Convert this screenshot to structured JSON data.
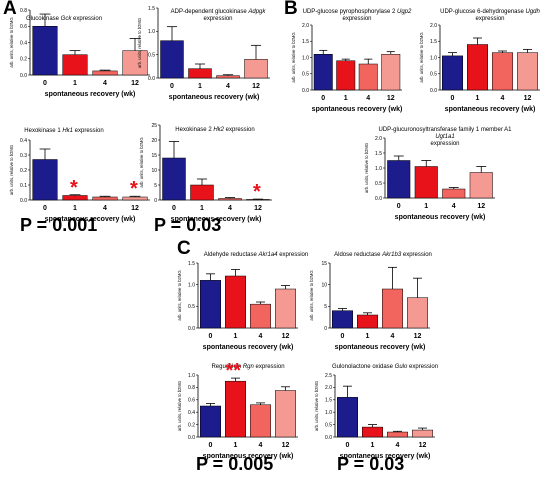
{
  "panels": {
    "A": "A",
    "B": "B",
    "C": "C"
  },
  "p_values": {
    "hk1": "P = 0.001",
    "hk2": "P = 0.03",
    "rgn": "P = 0.005",
    "gulo": "P = 0.03"
  },
  "markers": {
    "single": "*",
    "double": "**"
  },
  "colors": {
    "wk0": "#1c1c8c",
    "wk1": "#e8121b",
    "wk4": "#f2655f",
    "wk12": "#f59a92",
    "marker": "#e8121b"
  },
  "chart_data": [
    {
      "id": "gck",
      "type": "bar",
      "title": "Glucokinase",
      "gene": "Gck",
      "title_suffix": "expression",
      "ylabel": "arb. units, relative to b2MG",
      "xlabel": "spontaneous recovery (wk)",
      "categories": [
        "0",
        "1",
        "4",
        "12"
      ],
      "values": [
        0.6,
        0.25,
        0.05,
        0.3
      ],
      "errors": [
        0.15,
        0.05,
        0.01,
        0.15
      ],
      "ylim": [
        0,
        0.8
      ],
      "yticks": [
        "0.0",
        "0.2",
        "0.4",
        "0.6",
        "0.8"
      ]
    },
    {
      "id": "adpgk",
      "type": "bar",
      "title": "ADP-dependent glucokinase",
      "gene": "Adpgk",
      "title_suffix": "expression",
      "ylabel": "arb. units, relative to b2MG",
      "xlabel": "spontaneous recovery (wk)",
      "categories": [
        "0",
        "1",
        "4",
        "12"
      ],
      "values": [
        0.8,
        0.2,
        0.05,
        0.4
      ],
      "errors": [
        0.3,
        0.1,
        0.02,
        0.3
      ],
      "ylim": [
        0,
        1.5
      ],
      "yticks": [
        "0.0",
        "0.5",
        "1.0",
        "1.5"
      ]
    },
    {
      "id": "hk1",
      "type": "bar",
      "title": "Hexokinase 1",
      "gene": "Hk1",
      "title_suffix": "expression",
      "ylabel": "arb. units, relative to b2MG",
      "xlabel": "spontaneous recovery (wk)",
      "categories": [
        "0",
        "1",
        "4",
        "12"
      ],
      "values": [
        0.27,
        0.03,
        0.02,
        0.02
      ],
      "errors": [
        0.07,
        0.005,
        0.005,
        0.005
      ],
      "ylim": [
        0,
        0.4
      ],
      "yticks": [
        "0.0",
        "0.1",
        "0.2",
        "0.3",
        "0.4"
      ],
      "markers": [
        "",
        "*",
        "",
        "*"
      ]
    },
    {
      "id": "hk2",
      "type": "bar",
      "title": "Hexokinase 2",
      "gene": "Hk2",
      "title_suffix": "expression",
      "ylabel": "arb. units, relative to b2MG",
      "xlabel": "spontaneous recovery (wk)",
      "categories": [
        "0",
        "1",
        "4",
        "12"
      ],
      "values": [
        14,
        5,
        0.5,
        0.2
      ],
      "errors": [
        5.5,
        2,
        0.3,
        0.1
      ],
      "ylim": [
        0,
        25
      ],
      "yticks": [
        "0",
        "5",
        "10",
        "15",
        "20",
        "25"
      ],
      "markers": [
        "",
        "",
        "",
        "*"
      ]
    },
    {
      "id": "ugp2",
      "type": "bar",
      "title": "UDP-glucose pyrophosphorylase 2",
      "gene": "Ugp2",
      "title_suffix": "expression",
      "ylabel": "arb. units, relative to b2MG",
      "xlabel": "spontaneous recovery (wk)",
      "categories": [
        "0",
        "1",
        "4",
        "12"
      ],
      "values": [
        1.1,
        0.9,
        0.8,
        1.1
      ],
      "errors": [
        0.12,
        0.05,
        0.15,
        0.08
      ],
      "ylim": [
        0,
        2.0
      ],
      "yticks": [
        "0.0",
        "0.5",
        "1.0",
        "1.5",
        "2.0"
      ]
    },
    {
      "id": "ugdh",
      "type": "bar",
      "title": "UDP-glucose 6-dehydrogenase",
      "gene": "Ugdh",
      "title_suffix": "expression",
      "ylabel": "arb. units, relative to b2MG",
      "xlabel": "spontaneous recovery (wk)",
      "categories": [
        "0",
        "1",
        "4",
        "12"
      ],
      "values": [
        1.05,
        1.4,
        1.15,
        1.15
      ],
      "errors": [
        0.1,
        0.2,
        0.05,
        0.1
      ],
      "ylim": [
        0,
        2.0
      ],
      "yticks": [
        "0.0",
        "0.5",
        "1.0",
        "1.5",
        "2.0"
      ]
    },
    {
      "id": "ugt1a1",
      "type": "bar",
      "title": "UDP-glucuronosyltransferase family 1 member A1",
      "gene": "Ugt1a1",
      "title_suffix": "expression",
      "ylabel": "arb. units, relative to b2MG",
      "xlabel": "spontaneous recovery (wk)",
      "categories": [
        "0",
        "1",
        "4",
        "12"
      ],
      "values": [
        1.25,
        1.05,
        0.3,
        0.85
      ],
      "errors": [
        0.15,
        0.2,
        0.05,
        0.2
      ],
      "ylim": [
        0,
        2.0
      ],
      "yticks": [
        "0.0",
        "0.5",
        "1.0",
        "1.5",
        "2.0"
      ]
    },
    {
      "id": "akr1a4",
      "type": "bar",
      "title": "Aldehyde reductase",
      "gene": "Akr1a4",
      "title_suffix": "expression",
      "ylabel": "arb. units, relative to b2MG",
      "xlabel": "spontaneous recovery (wk)",
      "categories": [
        "0",
        "1",
        "4",
        "12"
      ],
      "values": [
        1.1,
        1.2,
        0.55,
        0.9
      ],
      "errors": [
        0.15,
        0.15,
        0.05,
        0.08
      ],
      "ylim": [
        0,
        1.5
      ],
      "yticks": [
        "0.0",
        "0.5",
        "1.0",
        "1.5"
      ]
    },
    {
      "id": "akr1b3",
      "type": "bar",
      "title": "Aldose reductase",
      "gene": "Akr1b3",
      "title_suffix": "expression",
      "ylabel": "arb. units, relative to b2MG",
      "xlabel": "spontaneous recovery (wk)",
      "categories": [
        "0",
        "1",
        "4",
        "12"
      ],
      "values": [
        4,
        3,
        9,
        7
      ],
      "errors": [
        0.5,
        0.5,
        5,
        4.5
      ],
      "ylim": [
        0,
        15
      ],
      "yticks": [
        "0",
        "5",
        "10",
        "15"
      ]
    },
    {
      "id": "rgn",
      "type": "bar",
      "title": "Regucalcin",
      "gene": "Rgn",
      "title_suffix": "expression",
      "ylabel": "arb. units, relative to b2MG",
      "xlabel": "spontaneous recovery (wk)",
      "categories": [
        "0",
        "1",
        "4",
        "12"
      ],
      "values": [
        0.5,
        0.9,
        0.52,
        0.75
      ],
      "errors": [
        0.04,
        0.05,
        0.03,
        0.06
      ],
      "ylim": [
        0,
        1.0
      ],
      "yticks": [
        "0.0",
        "0.2",
        "0.4",
        "0.6",
        "0.8",
        "1.0"
      ],
      "markers": [
        "",
        "**",
        "",
        ""
      ]
    },
    {
      "id": "gulo",
      "type": "bar",
      "title": "Gulonolactone oxidase",
      "gene": "Gulo",
      "title_suffix": "expression",
      "ylabel": "arb. units, relative to b2MG",
      "xlabel": "spontaneous recovery (wk)",
      "categories": [
        "0",
        "1",
        "4",
        "12"
      ],
      "values": [
        1.6,
        0.4,
        0.2,
        0.28
      ],
      "errors": [
        0.45,
        0.1,
        0.03,
        0.08
      ],
      "ylim": [
        0,
        2.5
      ],
      "yticks": [
        "0.0",
        "0.5",
        "1.0",
        "1.5",
        "2.0",
        "2.5"
      ]
    }
  ]
}
